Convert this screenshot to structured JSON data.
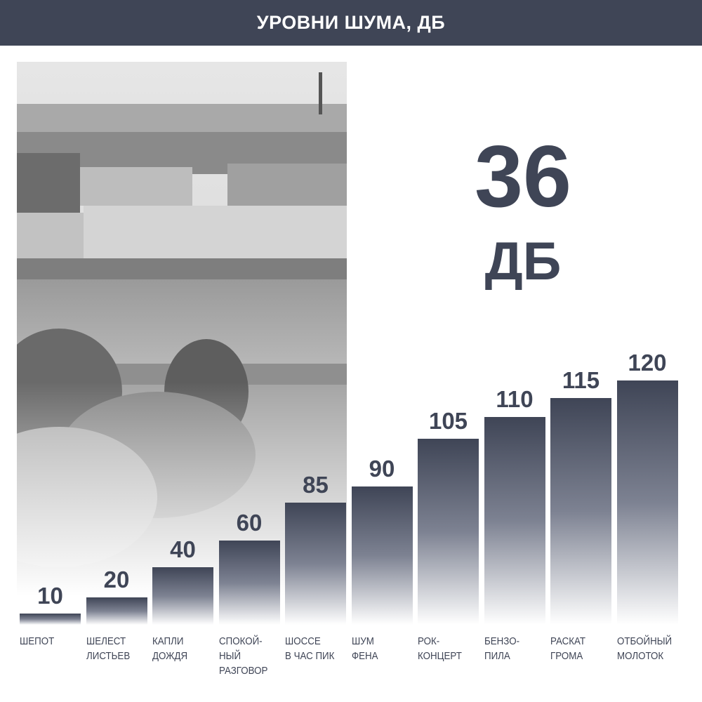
{
  "header": {
    "title": "УРОВНИ ШУМА, ДБ"
  },
  "highlight": {
    "value": "36",
    "unit": "ДБ"
  },
  "colors": {
    "bar": "#3f4556",
    "header": "#3f4556"
  },
  "chart_data": {
    "type": "bar",
    "title": "УРОВНИ ШУМА, ДБ",
    "categories": [
      "ШЕПОТ",
      "ШЕЛЕСТ ЛИСТЬЕВ",
      "КАПЛИ ДОЖДЯ",
      "СПОКОЙ-НЫЙ РАЗГОВОР",
      "ШОССЕ В ЧАС ПИК",
      "ШУМ ФЕНА",
      "РОК-КОНЦЕРТ",
      "БЕНЗО-ПИЛА",
      "РАСКАТ ГРОМА",
      "ОТБОЙНЫЙ МОЛОТОК"
    ],
    "label_lines": [
      [
        "ШЕПОТ"
      ],
      [
        "ШЕЛЕСТ",
        "ЛИСТЬЕВ"
      ],
      [
        "КАПЛИ",
        "ДОЖДЯ"
      ],
      [
        "СПОКОЙ-",
        "НЫЙ",
        "РАЗГОВОР"
      ],
      [
        "ШОССЕ",
        "В ЧАС ПИК"
      ],
      [
        "ШУМ",
        "ФЕНА"
      ],
      [
        "РОК-",
        "КОНЦЕРТ"
      ],
      [
        "БЕНЗО-",
        "ПИЛА"
      ],
      [
        "РАСКАТ",
        "ГРОМА"
      ],
      [
        "ОТБОЙНЫЙ",
        "МОЛОТОК"
      ]
    ],
    "values": [
      10,
      20,
      40,
      60,
      85,
      90,
      105,
      110,
      115,
      120
    ],
    "value_labels": [
      "10",
      "20",
      "40",
      "60",
      "85",
      "90",
      "105",
      "110",
      "115",
      "120"
    ],
    "xlabel": "",
    "ylabel": "",
    "grid": false
  }
}
